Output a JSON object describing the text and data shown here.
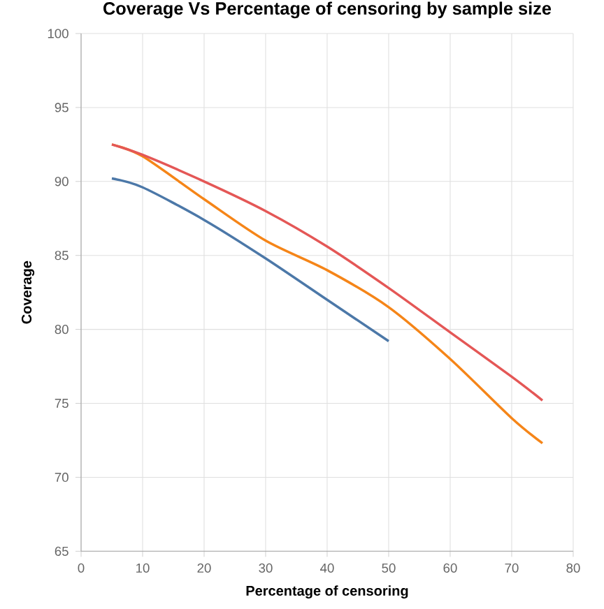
{
  "chart_data": {
    "type": "line",
    "title": "Coverage Vs Percentage of censoring by sample size",
    "xlabel": "Percentage of censoring",
    "ylabel": "Coverage",
    "xlim": [
      0,
      80
    ],
    "xticks": [
      0,
      10,
      20,
      30,
      40,
      50,
      60,
      70,
      80
    ],
    "ylim": [
      65,
      100
    ],
    "yticks": [
      65,
      70,
      75,
      80,
      85,
      90,
      95,
      100
    ],
    "grid": true,
    "marker": "none",
    "line_style": "solid",
    "series": [
      {
        "color": "#4c78a8",
        "x": [
          5,
          10,
          20,
          30,
          40,
          50
        ],
        "values": [
          90.2,
          89.6,
          87.4,
          84.8,
          82.0,
          79.2
        ]
      },
      {
        "color": "#f58518",
        "x": [
          5,
          10,
          20,
          30,
          40,
          50,
          60,
          70,
          75
        ],
        "values": [
          92.5,
          91.7,
          88.8,
          86.0,
          84.0,
          81.5,
          78.0,
          74.0,
          72.3
        ]
      },
      {
        "color": "#e45756",
        "x": [
          5,
          10,
          20,
          30,
          40,
          50,
          60,
          70,
          75
        ],
        "values": [
          92.5,
          91.8,
          90.0,
          88.0,
          85.6,
          82.8,
          79.8,
          76.8,
          75.2
        ]
      }
    ]
  }
}
